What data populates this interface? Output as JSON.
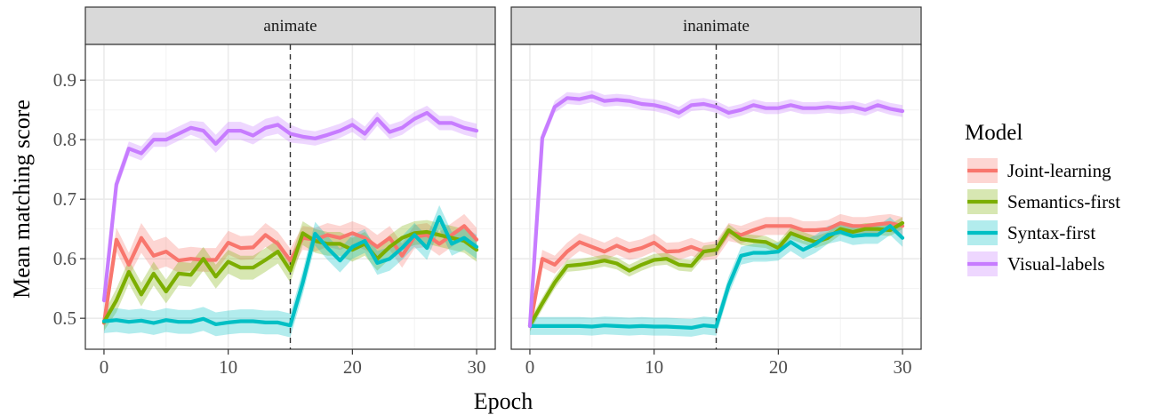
{
  "chart_data": {
    "type": "line",
    "xlabel": "Epoch",
    "ylabel": "Mean matching score",
    "xlim": [
      -1.5,
      31.5
    ],
    "ylim": [
      0.448,
      0.96
    ],
    "xticks": [
      0,
      10,
      20,
      30
    ],
    "yticks": [
      0.5,
      0.6,
      0.7,
      0.8,
      0.9
    ],
    "xtick_labels": [
      "0",
      "10",
      "20",
      "30"
    ],
    "ytick_labels": [
      "0.5",
      "0.6",
      "0.7",
      "0.8",
      "0.9"
    ],
    "vline_x": 15,
    "grid": true,
    "legend": {
      "title": "Model",
      "placement": "right",
      "entries": [
        "Joint-learning",
        "Semantics-first",
        "Syntax-first",
        "Visual-labels"
      ]
    },
    "series_colors": {
      "Joint-learning": "#F8766D",
      "Semantics-first": "#7CAE00",
      "Syntax-first": "#00BFC4",
      "Visual-labels": "#C77CFF"
    },
    "panels": [
      {
        "title": "animate",
        "series": [
          {
            "name": "Joint-learning",
            "x": [
              0,
              1,
              2,
              3,
              4,
              5,
              6,
              7,
              8,
              9,
              10,
              11,
              12,
              13,
              14,
              15,
              16,
              17,
              18,
              19,
              20,
              21,
              22,
              23,
              24,
              25,
              26,
              27,
              28,
              29,
              30
            ],
            "values": [
              0.492,
              0.632,
              0.59,
              0.635,
              0.605,
              0.612,
              0.597,
              0.6,
              0.598,
              0.598,
              0.627,
              0.618,
              0.619,
              0.64,
              0.625,
              0.597,
              0.635,
              0.632,
              0.64,
              0.635,
              0.643,
              0.635,
              0.62,
              0.635,
              0.605,
              0.637,
              0.64,
              0.625,
              0.64,
              0.655,
              0.632
            ],
            "band": [
              0.015,
              0.02,
              0.02,
              0.025,
              0.025,
              0.025,
              0.02,
              0.02,
              0.02,
              0.02,
              0.02,
              0.02,
              0.02,
              0.02,
              0.02,
              0.02,
              0.02,
              0.02,
              0.02,
              0.02,
              0.02,
              0.02,
              0.02,
              0.02,
              0.02,
              0.02,
              0.02,
              0.02,
              0.02,
              0.02,
              0.02
            ]
          },
          {
            "name": "Semantics-first",
            "x": [
              0,
              1,
              2,
              3,
              4,
              5,
              6,
              7,
              8,
              9,
              10,
              11,
              12,
              13,
              14,
              15,
              16,
              17,
              18,
              19,
              20,
              21,
              22,
              23,
              24,
              25,
              26,
              27,
              28,
              29,
              30
            ],
            "values": [
              0.494,
              0.53,
              0.578,
              0.54,
              0.575,
              0.545,
              0.575,
              0.573,
              0.6,
              0.57,
              0.595,
              0.585,
              0.585,
              0.598,
              0.612,
              0.58,
              0.643,
              0.63,
              0.625,
              0.625,
              0.615,
              0.625,
              0.6,
              0.62,
              0.635,
              0.643,
              0.645,
              0.64,
              0.635,
              0.63,
              0.615
            ],
            "band": [
              0.015,
              0.02,
              0.02,
              0.02,
              0.02,
              0.02,
              0.02,
              0.02,
              0.02,
              0.02,
              0.02,
              0.02,
              0.02,
              0.02,
              0.02,
              0.02,
              0.02,
              0.02,
              0.02,
              0.02,
              0.02,
              0.02,
              0.02,
              0.02,
              0.02,
              0.02,
              0.02,
              0.02,
              0.02,
              0.02,
              0.02
            ]
          },
          {
            "name": "Syntax-first",
            "x": [
              0,
              1,
              2,
              3,
              4,
              5,
              6,
              7,
              8,
              9,
              10,
              11,
              12,
              13,
              14,
              15,
              16,
              17,
              18,
              19,
              20,
              21,
              22,
              23,
              24,
              25,
              26,
              27,
              28,
              29,
              30
            ],
            "values": [
              0.495,
              0.497,
              0.494,
              0.496,
              0.492,
              0.497,
              0.494,
              0.494,
              0.499,
              0.49,
              0.493,
              0.495,
              0.495,
              0.493,
              0.493,
              0.488,
              0.56,
              0.642,
              0.618,
              0.597,
              0.62,
              0.63,
              0.593,
              0.6,
              0.618,
              0.64,
              0.618,
              0.67,
              0.625,
              0.635,
              0.62
            ],
            "band": [
              0.02,
              0.02,
              0.02,
              0.02,
              0.02,
              0.02,
              0.02,
              0.02,
              0.02,
              0.02,
              0.02,
              0.02,
              0.02,
              0.02,
              0.02,
              0.02,
              0.02,
              0.02,
              0.02,
              0.02,
              0.02,
              0.02,
              0.02,
              0.02,
              0.02,
              0.02,
              0.02,
              0.02,
              0.02,
              0.02,
              0.02
            ]
          },
          {
            "name": "Visual-labels",
            "x": [
              0,
              1,
              2,
              3,
              4,
              5,
              6,
              7,
              8,
              9,
              10,
              11,
              12,
              13,
              14,
              15,
              16,
              17,
              18,
              19,
              20,
              21,
              22,
              23,
              24,
              25,
              26,
              27,
              28,
              29,
              30
            ],
            "values": [
              0.53,
              0.725,
              0.785,
              0.777,
              0.8,
              0.8,
              0.81,
              0.82,
              0.815,
              0.793,
              0.815,
              0.815,
              0.807,
              0.82,
              0.825,
              0.81,
              0.805,
              0.802,
              0.808,
              0.815,
              0.825,
              0.81,
              0.835,
              0.813,
              0.82,
              0.835,
              0.845,
              0.828,
              0.828,
              0.82,
              0.815
            ],
            "band": [
              0.01,
              0.012,
              0.012,
              0.012,
              0.012,
              0.012,
              0.012,
              0.012,
              0.015,
              0.015,
              0.015,
              0.015,
              0.015,
              0.015,
              0.015,
              0.015,
              0.012,
              0.012,
              0.012,
              0.012,
              0.012,
              0.012,
              0.012,
              0.012,
              0.012,
              0.012,
              0.012,
              0.012,
              0.012,
              0.012,
              0.012
            ]
          }
        ]
      },
      {
        "title": "inanimate",
        "series": [
          {
            "name": "Joint-learning",
            "x": [
              0,
              1,
              2,
              3,
              4,
              5,
              6,
              7,
              8,
              9,
              10,
              11,
              12,
              13,
              14,
              15,
              16,
              17,
              18,
              19,
              20,
              21,
              22,
              23,
              24,
              25,
              26,
              27,
              28,
              29,
              30
            ],
            "values": [
              0.487,
              0.6,
              0.59,
              0.612,
              0.628,
              0.62,
              0.612,
              0.622,
              0.613,
              0.618,
              0.627,
              0.612,
              0.613,
              0.62,
              0.612,
              0.615,
              0.645,
              0.64,
              0.648,
              0.655,
              0.655,
              0.655,
              0.648,
              0.648,
              0.65,
              0.66,
              0.655,
              0.655,
              0.658,
              0.66,
              0.655
            ],
            "band": [
              0.01,
              0.015,
              0.015,
              0.015,
              0.015,
              0.015,
              0.015,
              0.015,
              0.015,
              0.015,
              0.015,
              0.015,
              0.015,
              0.015,
              0.015,
              0.015,
              0.015,
              0.015,
              0.015,
              0.015,
              0.015,
              0.015,
              0.015,
              0.015,
              0.015,
              0.015,
              0.015,
              0.015,
              0.015,
              0.015,
              0.015
            ]
          },
          {
            "name": "Semantics-first",
            "x": [
              0,
              1,
              2,
              3,
              4,
              5,
              6,
              7,
              8,
              9,
              10,
              11,
              12,
              13,
              14,
              15,
              16,
              17,
              18,
              19,
              20,
              21,
              22,
              23,
              24,
              25,
              26,
              27,
              28,
              29,
              30
            ],
            "values": [
              0.488,
              0.525,
              0.56,
              0.588,
              0.59,
              0.593,
              0.597,
              0.592,
              0.58,
              0.59,
              0.598,
              0.6,
              0.59,
              0.588,
              0.612,
              0.615,
              0.648,
              0.633,
              0.63,
              0.628,
              0.618,
              0.643,
              0.635,
              0.628,
              0.635,
              0.65,
              0.645,
              0.65,
              0.65,
              0.648,
              0.66
            ],
            "band": [
              0.01,
              0.01,
              0.01,
              0.01,
              0.01,
              0.01,
              0.01,
              0.01,
              0.01,
              0.01,
              0.01,
              0.01,
              0.01,
              0.01,
              0.01,
              0.01,
              0.01,
              0.01,
              0.01,
              0.01,
              0.01,
              0.01,
              0.01,
              0.01,
              0.01,
              0.01,
              0.01,
              0.01,
              0.01,
              0.01,
              0.01
            ]
          },
          {
            "name": "Syntax-first",
            "x": [
              0,
              1,
              2,
              3,
              4,
              5,
              6,
              7,
              8,
              9,
              10,
              11,
              12,
              13,
              14,
              15,
              16,
              17,
              18,
              19,
              20,
              21,
              22,
              23,
              24,
              25,
              26,
              27,
              28,
              29,
              30
            ],
            "values": [
              0.487,
              0.487,
              0.487,
              0.487,
              0.487,
              0.486,
              0.488,
              0.487,
              0.486,
              0.487,
              0.486,
              0.486,
              0.485,
              0.484,
              0.488,
              0.486,
              0.555,
              0.605,
              0.61,
              0.61,
              0.612,
              0.628,
              0.615,
              0.625,
              0.64,
              0.645,
              0.638,
              0.64,
              0.64,
              0.655,
              0.635
            ],
            "band": [
              0.015,
              0.015,
              0.015,
              0.015,
              0.015,
              0.015,
              0.015,
              0.015,
              0.015,
              0.015,
              0.015,
              0.015,
              0.015,
              0.015,
              0.015,
              0.015,
              0.015,
              0.015,
              0.015,
              0.015,
              0.015,
              0.015,
              0.015,
              0.015,
              0.015,
              0.015,
              0.015,
              0.015,
              0.015,
              0.015,
              0.015
            ]
          },
          {
            "name": "Visual-labels",
            "x": [
              0,
              1,
              2,
              3,
              4,
              5,
              6,
              7,
              8,
              9,
              10,
              11,
              12,
              13,
              14,
              15,
              16,
              17,
              18,
              19,
              20,
              21,
              22,
              23,
              24,
              25,
              26,
              27,
              28,
              29,
              30
            ],
            "values": [
              0.487,
              0.803,
              0.855,
              0.87,
              0.868,
              0.873,
              0.865,
              0.867,
              0.865,
              0.86,
              0.858,
              0.853,
              0.845,
              0.858,
              0.86,
              0.855,
              0.845,
              0.85,
              0.858,
              0.853,
              0.853,
              0.858,
              0.853,
              0.853,
              0.855,
              0.853,
              0.855,
              0.85,
              0.858,
              0.852,
              0.848
            ],
            "band": [
              0.01,
              0.01,
              0.01,
              0.01,
              0.01,
              0.01,
              0.01,
              0.01,
              0.01,
              0.01,
              0.01,
              0.01,
              0.01,
              0.01,
              0.01,
              0.01,
              0.01,
              0.01,
              0.01,
              0.01,
              0.01,
              0.01,
              0.01,
              0.01,
              0.01,
              0.01,
              0.01,
              0.01,
              0.01,
              0.01,
              0.01
            ]
          }
        ]
      }
    ]
  }
}
